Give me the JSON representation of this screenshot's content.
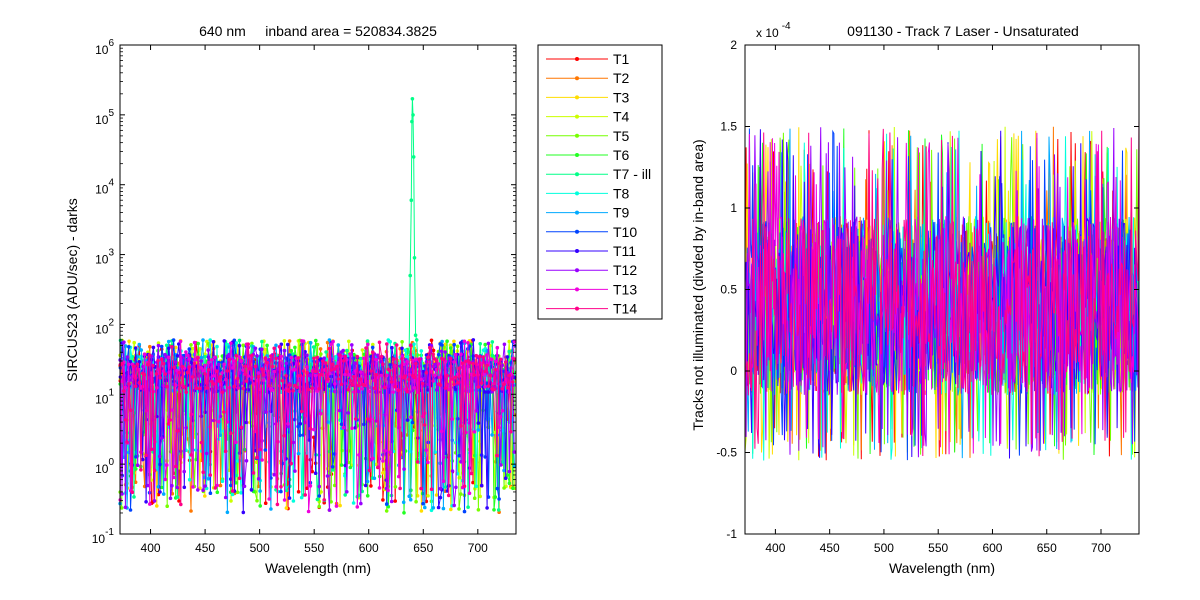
{
  "chart_data": [
    {
      "type": "line",
      "title": "640 nm     inband area = 520834.3825",
      "xlabel": "Wavelength (nm)",
      "ylabel": "SIRCUS23  (ADU/sec) - darks",
      "xlim": [
        372,
        735
      ],
      "ylim": [
        0.1,
        1000000
      ],
      "yscale": "log",
      "xticks": [
        "400",
        "450",
        "500",
        "550",
        "600",
        "650",
        "700"
      ],
      "yticks": [
        {
          "base": "10",
          "exp": "-1"
        },
        {
          "base": "10",
          "exp": "0"
        },
        {
          "base": "10",
          "exp": "1"
        },
        {
          "base": "10",
          "exp": "2"
        },
        {
          "base": "10",
          "exp": "3"
        },
        {
          "base": "10",
          "exp": "4"
        },
        {
          "base": "10",
          "exp": "5"
        },
        {
          "base": "10",
          "exp": "6"
        }
      ],
      "markers": true,
      "legend_position": "outside-right",
      "series": [
        {
          "name": "T1",
          "color": "#ff0000"
        },
        {
          "name": "T2",
          "color": "#ff7700"
        },
        {
          "name": "T3",
          "color": "#ffdd00"
        },
        {
          "name": "T4",
          "color": "#ccff00"
        },
        {
          "name": "T5",
          "color": "#77ff00"
        },
        {
          "name": "T6",
          "color": "#22ff22"
        },
        {
          "name": "T7 - ill",
          "color": "#00ff88"
        },
        {
          "name": "T8",
          "color": "#00ffdd"
        },
        {
          "name": "T9",
          "color": "#00aaff"
        },
        {
          "name": "T10",
          "color": "#0044ff"
        },
        {
          "name": "T11",
          "color": "#3300ff"
        },
        {
          "name": "T12",
          "color": "#9900ff"
        },
        {
          "name": "T13",
          "color": "#ee00dd"
        },
        {
          "name": "T14",
          "color": "#ff0088"
        }
      ],
      "noise_band": {
        "center": 20,
        "typical_max": 60,
        "typical_min": 2
      },
      "peak": {
        "series": "T7 - ill",
        "x": 640,
        "y": 170000,
        "shoulder_x": [
          637,
          644
        ],
        "shoulder_y": [
          40,
          60
        ]
      }
    },
    {
      "type": "line",
      "title": "091130 - Track 7 Laser - Unsaturated",
      "xlabel": "Wavelength (nm)",
      "ylabel": "Tracks not illuminated (divded by in-band area)",
      "xlim": [
        372,
        735
      ],
      "ylim": [
        -1,
        2
      ],
      "yscale_note": {
        "base": "x 10",
        "exp": "-4"
      },
      "xticks": [
        "400",
        "450",
        "500",
        "550",
        "600",
        "650",
        "700"
      ],
      "yticks": [
        "-1",
        "-0.5",
        "0",
        "0.5",
        "1",
        "1.5",
        "2"
      ],
      "series_count": 13,
      "noise_band": {
        "center": 0.4,
        "typical_max": 1.1,
        "typical_min": -0.35
      }
    }
  ]
}
